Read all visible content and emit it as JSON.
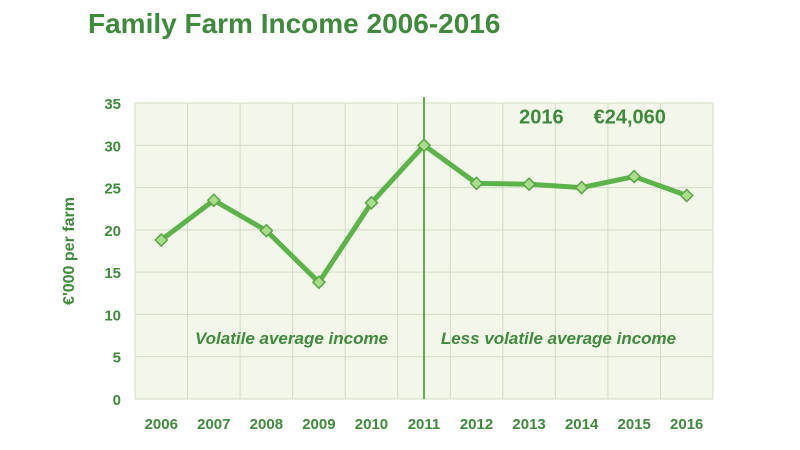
{
  "chart_data": {
    "type": "line",
    "title": "Family Farm Income 2006-2016",
    "xlabel": "",
    "ylabel": "€'000 per farm",
    "x": [
      "2006",
      "2007",
      "2008",
      "2009",
      "2010",
      "2011",
      "2012",
      "2013",
      "2014",
      "2015",
      "2016"
    ],
    "y": [
      18.8,
      23.5,
      19.9,
      13.8,
      23.2,
      30.0,
      25.5,
      25.4,
      25.0,
      26.3,
      24.06
    ],
    "ylim": [
      0,
      35
    ],
    "yticks": [
      0,
      5,
      10,
      15,
      20,
      25,
      30,
      35
    ],
    "grid": true,
    "annotations": {
      "divider_at": "2011",
      "left_label": "Volatile average income",
      "right_label": "Less volatile average income",
      "highlight_year": "2016",
      "highlight_value": "€24,060"
    },
    "colors": {
      "title": "#3f8a3c",
      "line": "#5cb34a",
      "marker_fill": "#a9dd8c",
      "marker_stroke": "#5aa646",
      "plot_bg": "#f2f7ea",
      "grid": "#cfdcc2",
      "text": "#3f8a3c"
    }
  }
}
